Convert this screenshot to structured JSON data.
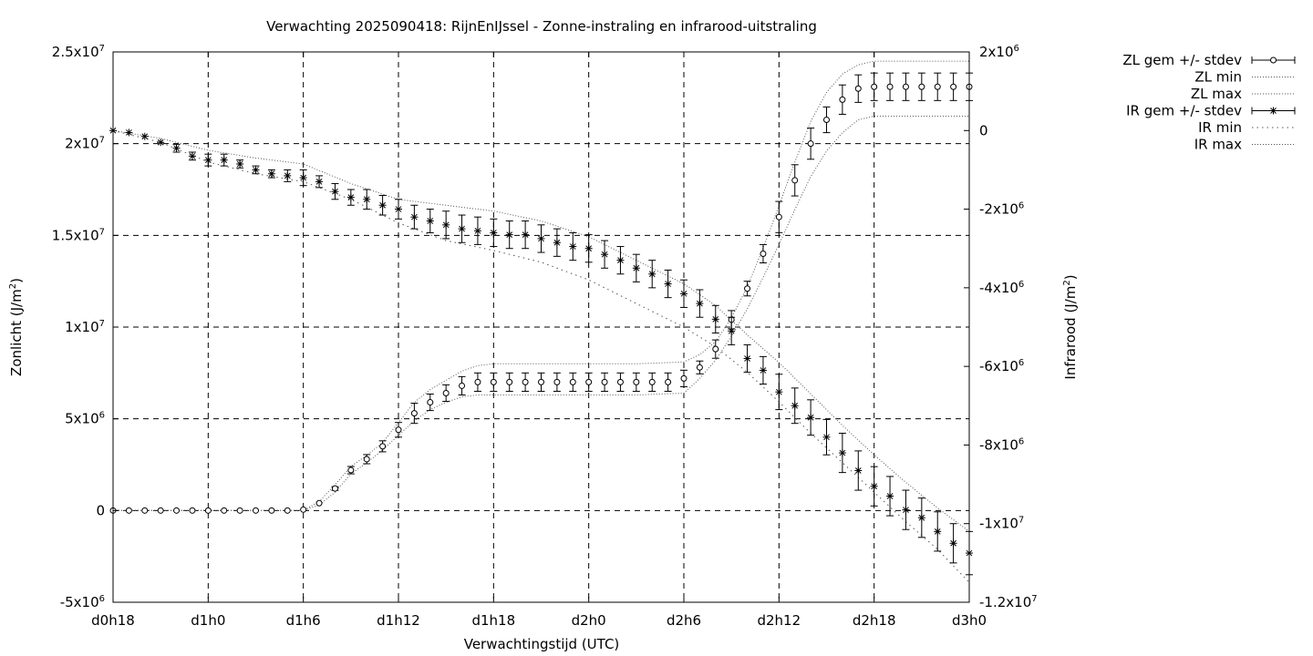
{
  "chart_data": {
    "type": "line",
    "title": "Verwachting 2025090418: RijnEnIJssel - Zonne-instraling en infrarood-uitstraling",
    "xlabel": "Verwachtingstijd (UTC)",
    "ylabel": "Zonlicht (J/m²)",
    "ylabel_base": "Zonlicht (J/m",
    "ylabel_sup": "2",
    "ylabel_end": ")",
    "y2label": "Infrarood (J/m²)",
    "y2label_base": "Infrarood (J/m",
    "y2label_sup": "2",
    "y2label_end": ")",
    "xlim": [
      18,
      72
    ],
    "ylim": [
      -5000000,
      25000000
    ],
    "y2lim": [
      -12000000,
      2000000
    ],
    "grid": true,
    "legend_position": "top-right outside",
    "x_ticks": [
      {
        "value": 18,
        "label": "d0h18"
      },
      {
        "value": 24,
        "label": "d1h0"
      },
      {
        "value": 30,
        "label": "d1h6"
      },
      {
        "value": 36,
        "label": "d1h12"
      },
      {
        "value": 42,
        "label": "d1h18"
      },
      {
        "value": 48,
        "label": "d2h0"
      },
      {
        "value": 54,
        "label": "d2h6"
      },
      {
        "value": 60,
        "label": "d2h12"
      },
      {
        "value": 66,
        "label": "d2h18"
      },
      {
        "value": 72,
        "label": "d3h0"
      }
    ],
    "y_ticks": [
      {
        "value": -5000000,
        "base": "-5x10",
        "exp": "6"
      },
      {
        "value": 0,
        "base": "0",
        "exp": ""
      },
      {
        "value": 5000000,
        "base": "5x10",
        "exp": "6"
      },
      {
        "value": 10000000,
        "base": "1x10",
        "exp": "7"
      },
      {
        "value": 15000000,
        "base": "1.5x10",
        "exp": "7"
      },
      {
        "value": 20000000,
        "base": "2x10",
        "exp": "7"
      },
      {
        "value": 25000000,
        "base": "2.5x10",
        "exp": "7"
      }
    ],
    "y2_ticks": [
      {
        "value": -12000000,
        "base": "-1.2x10",
        "exp": "7"
      },
      {
        "value": -10000000,
        "base": "-1x10",
        "exp": "7"
      },
      {
        "value": -8000000,
        "base": "-8x10",
        "exp": "6"
      },
      {
        "value": -6000000,
        "base": "-6x10",
        "exp": "6"
      },
      {
        "value": -4000000,
        "base": "-4x10",
        "exp": "6"
      },
      {
        "value": -2000000,
        "base": "-2x10",
        "exp": "6"
      },
      {
        "value": 0,
        "base": "0",
        "exp": ""
      },
      {
        "value": 2000000,
        "base": "2x10",
        "exp": "6"
      }
    ],
    "series": [
      {
        "name": "ZL gem +/- stdev",
        "axis": "y",
        "marker": "circle",
        "x": [
          18,
          19,
          20,
          21,
          22,
          23,
          24,
          25,
          26,
          27,
          28,
          29,
          30,
          31,
          32,
          33,
          34,
          35,
          36,
          37,
          38,
          39,
          40,
          41,
          42,
          43,
          44,
          45,
          46,
          47,
          48,
          49,
          50,
          51,
          52,
          53,
          54,
          55,
          56,
          57,
          58,
          59,
          60,
          61,
          62,
          63,
          64,
          65,
          66,
          67,
          68,
          69,
          70,
          71,
          72
        ],
        "mean": [
          0,
          0,
          0,
          0,
          0,
          0,
          0,
          0,
          0,
          0,
          0,
          0,
          50000,
          400000,
          1200000,
          2200000,
          2800000,
          3500000,
          4400000,
          5300000,
          5900000,
          6400000,
          6800000,
          7000000,
          7000000,
          7000000,
          7000000,
          7000000,
          7000000,
          7000000,
          7000000,
          7000000,
          7000000,
          7000000,
          7000000,
          7000000,
          7200000,
          7800000,
          8800000,
          10400000,
          12100000,
          14000000,
          16000000,
          18000000,
          20000000,
          21300000,
          22400000,
          23000000,
          23100000,
          23100000,
          23100000,
          23100000,
          23100000,
          23100000,
          23100000
        ],
        "stdev": [
          0,
          0,
          0,
          0,
          0,
          0,
          0,
          0,
          0,
          0,
          0,
          0,
          0,
          0,
          100000,
          200000,
          250000,
          300000,
          400000,
          550000,
          450000,
          450000,
          500000,
          500000,
          500000,
          500000,
          500000,
          500000,
          500000,
          500000,
          500000,
          500000,
          500000,
          500000,
          500000,
          500000,
          450000,
          350000,
          500000,
          500000,
          400000,
          500000,
          850000,
          850000,
          850000,
          700000,
          800000,
          750000,
          750000,
          750000,
          750000,
          750000,
          750000,
          750000,
          750000
        ]
      },
      {
        "name": "ZL min",
        "axis": "y",
        "style": "dotted",
        "x": [
          18,
          24,
          30,
          31,
          32,
          33,
          34,
          35,
          36,
          37,
          38,
          39,
          40,
          41,
          42,
          45,
          48,
          51,
          54,
          55,
          56,
          57,
          58,
          59,
          60,
          61,
          62,
          63,
          64,
          65,
          66,
          69,
          72
        ],
        "values": [
          0,
          0,
          0,
          300000,
          1000000,
          2000000,
          2600000,
          3300000,
          4100000,
          4900000,
          5500000,
          5900000,
          6200000,
          6300000,
          6300000,
          6300000,
          6300000,
          6300000,
          6400000,
          7200000,
          8200000,
          9500000,
          11000000,
          12700000,
          14500000,
          16400000,
          18200000,
          19600000,
          20600000,
          21300000,
          21500000,
          21500000,
          21500000
        ]
      },
      {
        "name": "ZL max",
        "axis": "y",
        "style": "dotted",
        "x": [
          18,
          24,
          30,
          31,
          32,
          33,
          34,
          35,
          36,
          37,
          38,
          39,
          40,
          41,
          42,
          45,
          48,
          51,
          54,
          55,
          56,
          57,
          58,
          59,
          60,
          61,
          62,
          63,
          64,
          65,
          66,
          69,
          72
        ],
        "values": [
          0,
          0,
          0,
          500000,
          1400000,
          2400000,
          3000000,
          3700000,
          4800000,
          5900000,
          6600000,
          7100000,
          7600000,
          7900000,
          8000000,
          8000000,
          8000000,
          8000000,
          8100000,
          8500000,
          9200000,
          10500000,
          12200000,
          14300000,
          16600000,
          19000000,
          21200000,
          22800000,
          23800000,
          24300000,
          24500000,
          24500000,
          24500000
        ]
      },
      {
        "name": "IR gem +/- stdev",
        "axis": "y2",
        "marker": "star",
        "x": [
          18,
          19,
          20,
          21,
          22,
          23,
          24,
          25,
          26,
          27,
          28,
          29,
          30,
          31,
          32,
          33,
          34,
          35,
          36,
          37,
          38,
          39,
          40,
          41,
          42,
          43,
          44,
          45,
          46,
          47,
          48,
          49,
          50,
          51,
          52,
          53,
          54,
          55,
          56,
          57,
          58,
          59,
          60,
          61,
          62,
          63,
          64,
          65,
          66,
          67,
          68,
          69,
          70,
          71,
          72
        ],
        "mean": [
          0,
          -50000,
          -150000,
          -300000,
          -450000,
          -650000,
          -750000,
          -750000,
          -850000,
          -1000000,
          -1100000,
          -1150000,
          -1200000,
          -1300000,
          -1550000,
          -1700000,
          -1750000,
          -1900000,
          -2000000,
          -2200000,
          -2300000,
          -2400000,
          -2500000,
          -2550000,
          -2600000,
          -2650000,
          -2650000,
          -2750000,
          -2850000,
          -2950000,
          -3000000,
          -3150000,
          -3300000,
          -3500000,
          -3650000,
          -3900000,
          -4150000,
          -4400000,
          -4800000,
          -5100000,
          -5800000,
          -6100000,
          -6650000,
          -7000000,
          -7300000,
          -7800000,
          -8200000,
          -8650000,
          -9050000,
          -9300000,
          -9650000,
          -9850000,
          -10200000,
          -10500000,
          -10750000
        ],
        "stdev": [
          0,
          0,
          0,
          0,
          100000,
          100000,
          150000,
          150000,
          100000,
          100000,
          100000,
          150000,
          200000,
          150000,
          200000,
          200000,
          250000,
          250000,
          250000,
          300000,
          300000,
          350000,
          350000,
          350000,
          350000,
          350000,
          350000,
          350000,
          350000,
          350000,
          350000,
          350000,
          350000,
          350000,
          350000,
          350000,
          350000,
          350000,
          350000,
          350000,
          350000,
          350000,
          450000,
          450000,
          450000,
          450000,
          500000,
          500000,
          500000,
          500000,
          500000,
          500000,
          500000,
          500000,
          550000
        ]
      },
      {
        "name": "IR min",
        "axis": "y2",
        "style": "dotted",
        "x": [
          18,
          21,
          24,
          27,
          30,
          33,
          36,
          39,
          42,
          45,
          48,
          51,
          54,
          56,
          58,
          60,
          62,
          64,
          66,
          68,
          70,
          72
        ],
        "values": [
          0,
          -300000,
          -800000,
          -1100000,
          -1300000,
          -1750000,
          -2350000,
          -2800000,
          -3050000,
          -3350000,
          -3800000,
          -4400000,
          -5000000,
          -5500000,
          -6150000,
          -6900000,
          -7700000,
          -8450000,
          -9200000,
          -9950000,
          -10650000,
          -11500000
        ]
      },
      {
        "name": "IR max",
        "axis": "y2",
        "style": "dotted",
        "x": [
          18,
          21,
          24,
          27,
          30,
          33,
          36,
          39,
          42,
          45,
          48,
          51,
          54,
          56,
          58,
          60,
          62,
          64,
          66,
          68,
          70,
          72
        ],
        "values": [
          0,
          -200000,
          -500000,
          -700000,
          -850000,
          -1350000,
          -1750000,
          -1900000,
          -2050000,
          -2300000,
          -2700000,
          -3300000,
          -3900000,
          -4450000,
          -5200000,
          -5900000,
          -6700000,
          -7500000,
          -8250000,
          -8950000,
          -9600000,
          -10200000
        ]
      }
    ]
  }
}
